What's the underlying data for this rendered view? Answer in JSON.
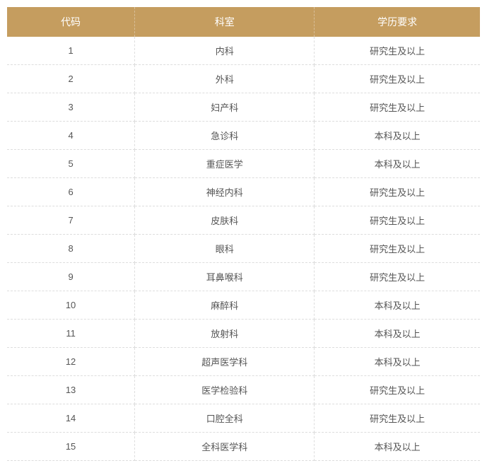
{
  "table": {
    "type": "table",
    "header_bg_color": "#c59d5f",
    "header_text_color": "#ffffff",
    "body_text_color": "#555555",
    "border_color": "#dddddd",
    "header_fontsize": 14,
    "body_fontsize": 13,
    "columns": [
      {
        "key": "code",
        "label": "代码",
        "width_pct": 27,
        "align": "center"
      },
      {
        "key": "dept",
        "label": "科室",
        "width_pct": 38,
        "align": "center"
      },
      {
        "key": "edu",
        "label": "学历要求",
        "width_pct": 35,
        "align": "center"
      }
    ],
    "rows": [
      {
        "code": "1",
        "dept": "内科",
        "edu": "研究生及以上"
      },
      {
        "code": "2",
        "dept": "外科",
        "edu": "研究生及以上"
      },
      {
        "code": "3",
        "dept": "妇产科",
        "edu": "研究生及以上"
      },
      {
        "code": "4",
        "dept": "急诊科",
        "edu": "本科及以上"
      },
      {
        "code": "5",
        "dept": "重症医学",
        "edu": "本科及以上"
      },
      {
        "code": "6",
        "dept": "神经内科",
        "edu": "研究生及以上"
      },
      {
        "code": "7",
        "dept": "皮肤科",
        "edu": "研究生及以上"
      },
      {
        "code": "8",
        "dept": "眼科",
        "edu": "研究生及以上"
      },
      {
        "code": "9",
        "dept": "耳鼻喉科",
        "edu": "研究生及以上"
      },
      {
        "code": "10",
        "dept": "麻醉科",
        "edu": "本科及以上"
      },
      {
        "code": "11",
        "dept": "放射科",
        "edu": "本科及以上"
      },
      {
        "code": "12",
        "dept": "超声医学科",
        "edu": "本科及以上"
      },
      {
        "code": "13",
        "dept": "医学检验科",
        "edu": "研究生及以上"
      },
      {
        "code": "14",
        "dept": "口腔全科",
        "edu": "研究生及以上"
      },
      {
        "code": "15",
        "dept": "全科医学科",
        "edu": "本科及以上"
      }
    ]
  }
}
